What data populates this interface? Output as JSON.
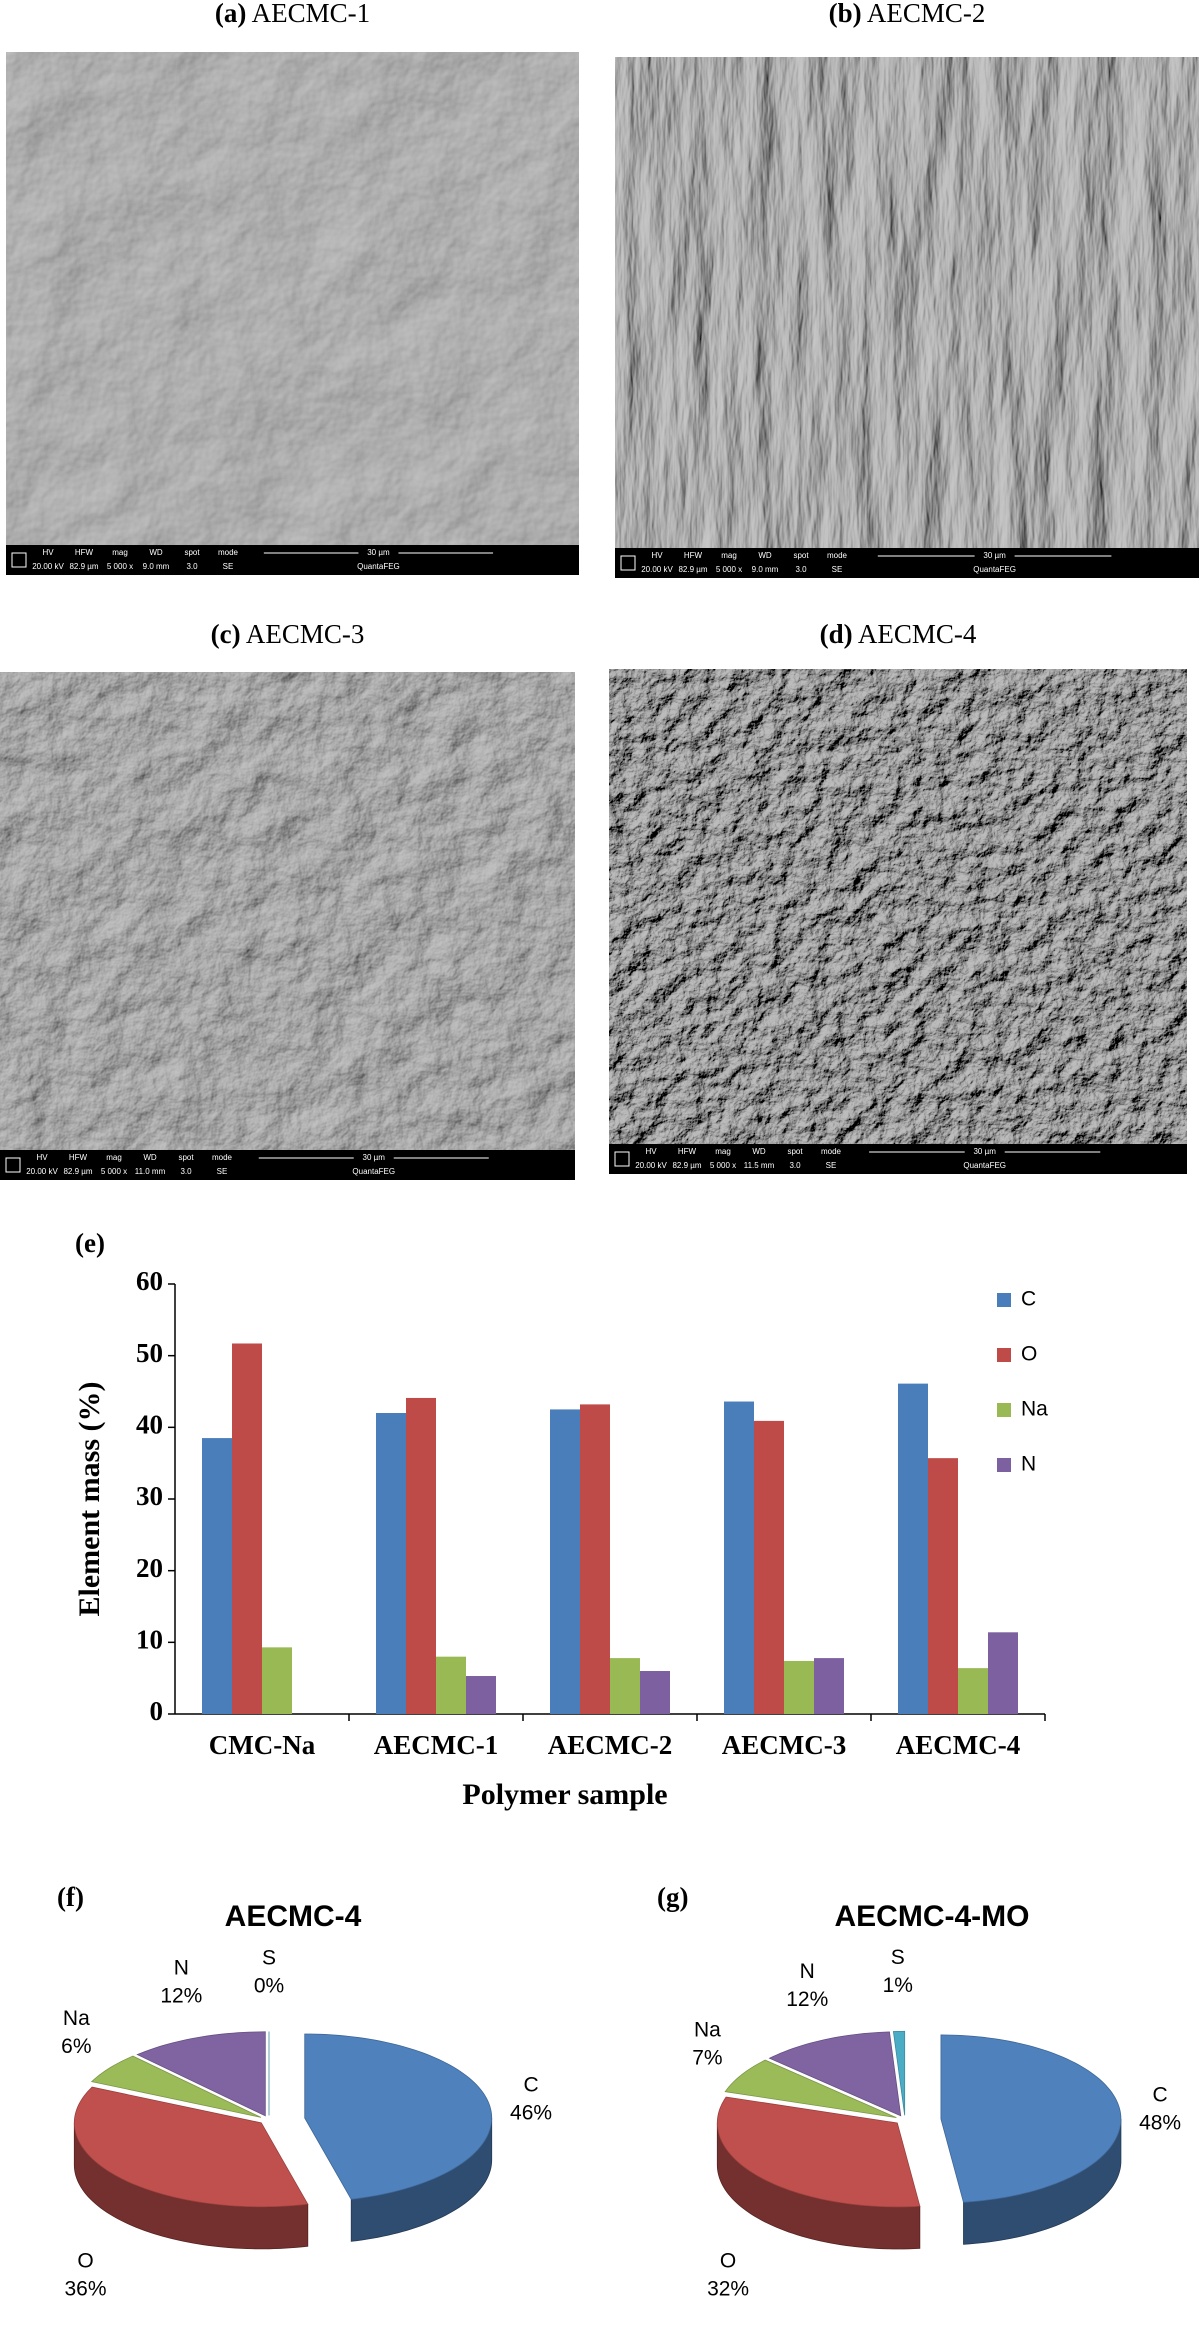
{
  "panels": [
    {
      "label": "(a)",
      "title": "AECMC-1",
      "info": {
        "headers": [
          "HV",
          "HFW",
          "mag",
          "WD",
          "spot",
          "mode"
        ],
        "values": [
          "20.00 kV",
          "82.9 µm",
          "5 000 x",
          "9.0 mm",
          "3.0",
          "SE"
        ]
      },
      "scale_bar": "30 µm",
      "instrument": "QuantaFEG"
    },
    {
      "label": "(b)",
      "title": "AECMC-2",
      "info": {
        "headers": [
          "HV",
          "HFW",
          "mag",
          "WD",
          "spot",
          "mode"
        ],
        "values": [
          "20.00 kV",
          "82.9 µm",
          "5 000 x",
          "9.0 mm",
          "3.0",
          "SE"
        ]
      },
      "scale_bar": "30 µm",
      "instrument": "QuantaFEG"
    },
    {
      "label": "(c)",
      "title": "AECMC-3",
      "info": {
        "headers": [
          "HV",
          "HFW",
          "mag",
          "WD",
          "spot",
          "mode"
        ],
        "values": [
          "20.00 kV",
          "82.9 µm",
          "5 000 x",
          "11.0 mm",
          "3.0",
          "SE"
        ]
      },
      "scale_bar": "30 µm",
      "instrument": "QuantaFEG"
    },
    {
      "label": "(d)",
      "title": "AECMC-4",
      "info": {
        "headers": [
          "HV",
          "HFW",
          "mag",
          "WD",
          "spot",
          "mode"
        ],
        "values": [
          "20.00 kV",
          "82.9 µm",
          "5 000 x",
          "11.5 mm",
          "3.0",
          "SE"
        ]
      },
      "scale_bar": "30 µm",
      "instrument": "QuantaFEG"
    }
  ],
  "chart_data": [
    {
      "type": "bar",
      "label": "(e)",
      "y_label": "Element mass (%)",
      "x_label": "Polymer sample",
      "categories": [
        "CMC-Na",
        "AECMC-1",
        "AECMC-2",
        "AECMC-3",
        "AECMC-4"
      ],
      "series": [
        {
          "name": "C",
          "color": "#4a7ebb",
          "values": [
            38.5,
            42,
            42.5,
            43.6,
            46.1
          ]
        },
        {
          "name": "O",
          "color": "#be4b48",
          "values": [
            51.7,
            44.1,
            43.2,
            40.9,
            35.7
          ]
        },
        {
          "name": "Na",
          "color": "#98b954",
          "values": [
            9.3,
            8,
            7.8,
            7.4,
            6.4
          ]
        },
        {
          "name": "N",
          "color": "#7d60a0",
          "values": [
            null,
            5.3,
            6,
            7.8,
            11.4
          ]
        }
      ],
      "ylim": [
        0,
        60
      ],
      "yticks": [
        0,
        10,
        20,
        30,
        40,
        50,
        60
      ],
      "grid": false,
      "legend": "right"
    },
    {
      "type": "pie",
      "label": "(f)",
      "title": "AECMC-4",
      "categories": [
        "C",
        "O",
        "Na",
        "N",
        "S"
      ],
      "values": [
        46,
        36,
        6,
        12,
        0
      ],
      "value_labels": [
        "46%",
        "36%",
        "6%",
        "12%",
        "0%"
      ],
      "colors": [
        "#4f81bd",
        "#c0504d",
        "#9bbb59",
        "#8064a2",
        "#4bacc6"
      ]
    },
    {
      "type": "pie",
      "label": "(g)",
      "title": "AECMC-4-MO",
      "categories": [
        "C",
        "O",
        "Na",
        "N",
        "S"
      ],
      "values": [
        48,
        32,
        7,
        12,
        1
      ],
      "value_labels": [
        "48%",
        "32%",
        "7%",
        "12%",
        "1%"
      ],
      "colors": [
        "#4f81bd",
        "#c0504d",
        "#9bbb59",
        "#8064a2",
        "#4bacc6"
      ]
    }
  ]
}
